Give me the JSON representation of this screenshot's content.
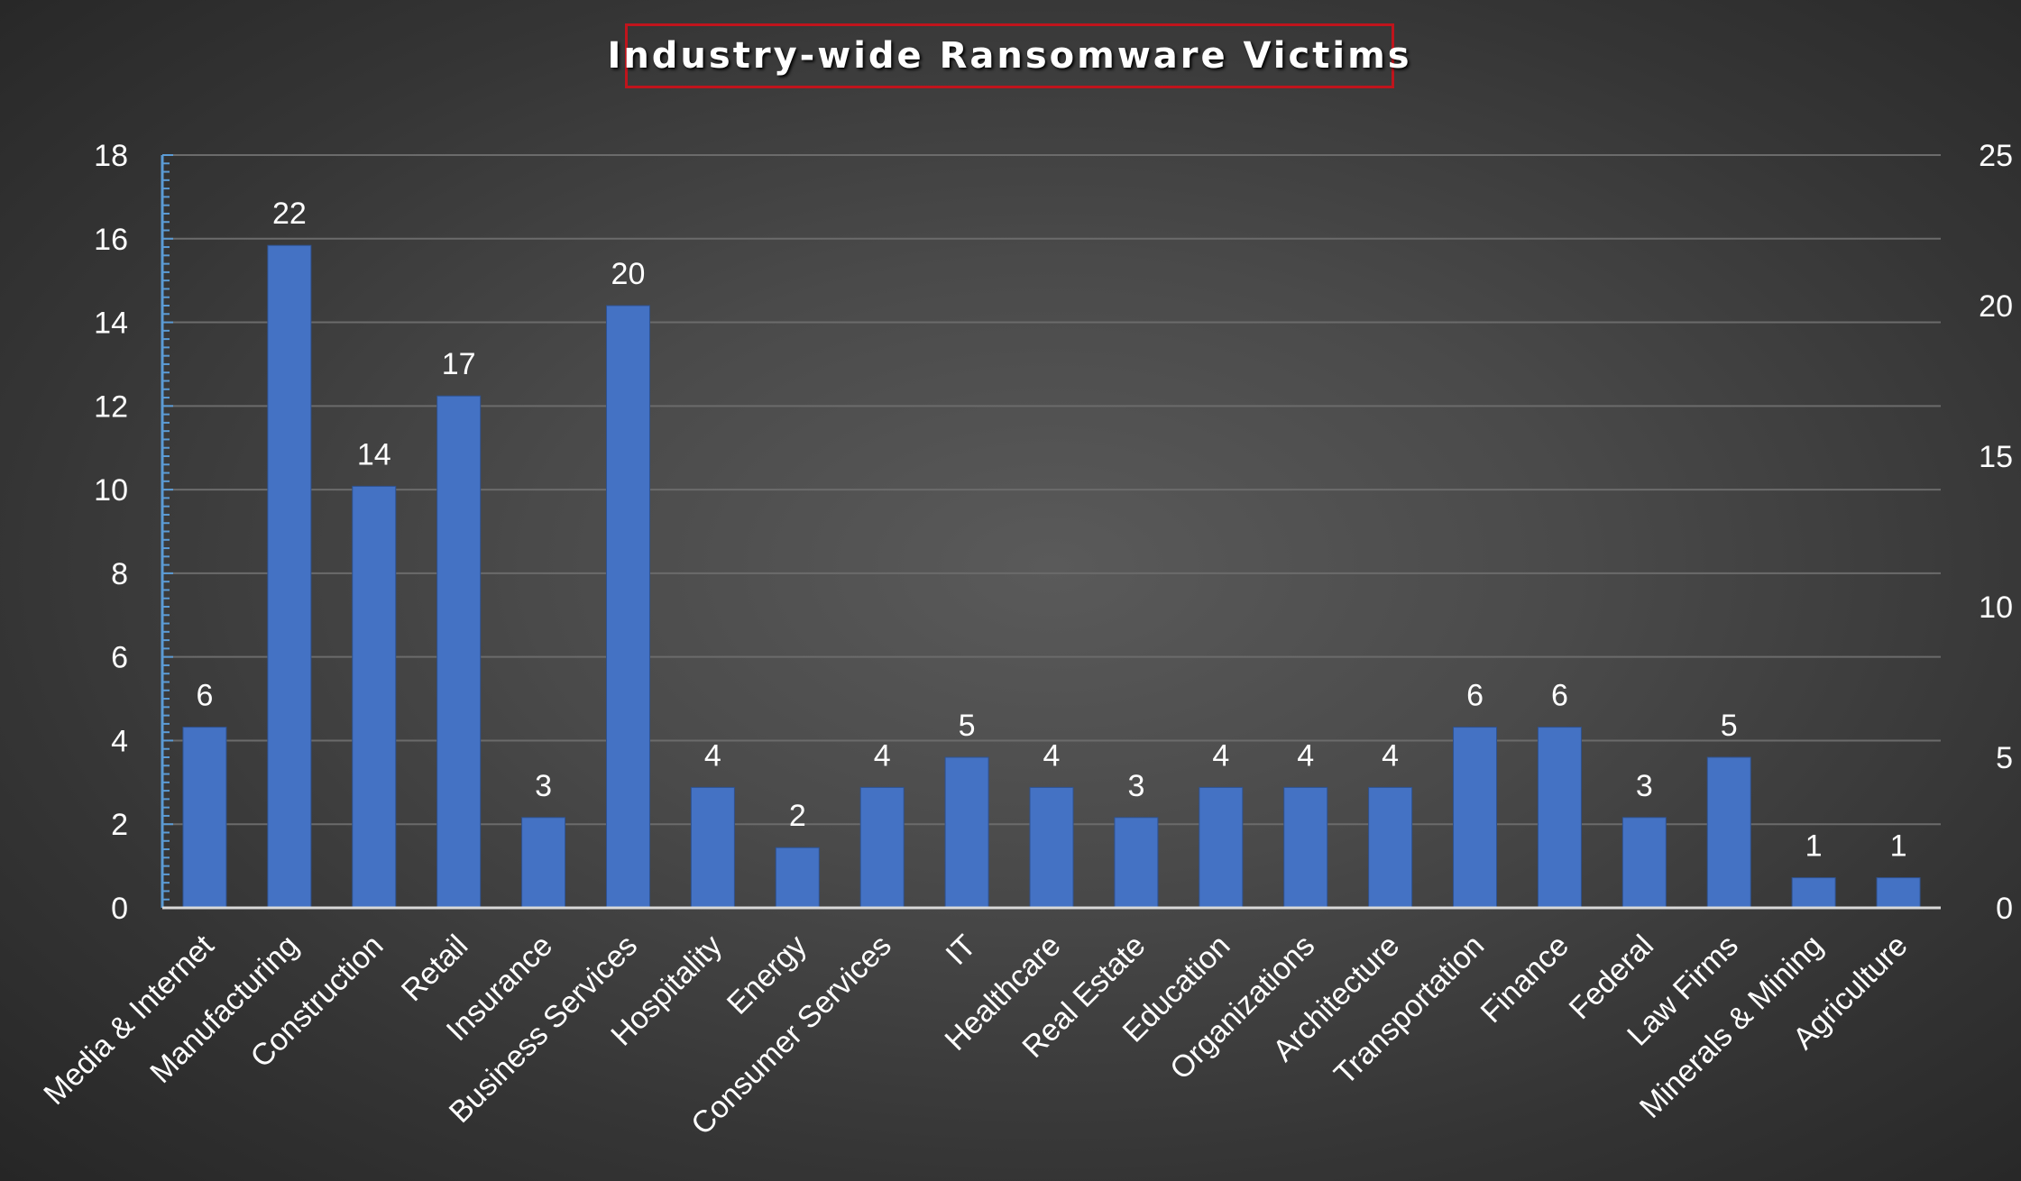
{
  "chart_data": {
    "type": "bar",
    "title": "Industry-wide Ransomware Victims",
    "categories": [
      "Media & Internet",
      "Manufacturing",
      "Construction",
      "Retail",
      "Insurance",
      "Business Services",
      "Hospitality",
      "Energy",
      "Consumer Services",
      "IT",
      "Healthcare",
      "Real Estate",
      "Education",
      "Organizations",
      "Architecture",
      "Transportation",
      "Finance",
      "Federal",
      "Law Firms",
      "Minerals & Mining",
      "Agriculture"
    ],
    "values": [
      6,
      22,
      14,
      17,
      3,
      20,
      4,
      2,
      4,
      5,
      4,
      3,
      4,
      4,
      4,
      6,
      6,
      3,
      5,
      1,
      1
    ],
    "y_left": {
      "ticks": [
        "0",
        "2",
        "4",
        "6",
        "8",
        "10",
        "12",
        "14",
        "16",
        "18"
      ],
      "ylim": [
        0,
        18
      ]
    },
    "y_right": {
      "ticks": [
        "0",
        "5",
        "10",
        "15",
        "20",
        "25"
      ],
      "ylim": [
        0,
        25
      ]
    },
    "bars_plotted_against": "right axis",
    "grid": true,
    "legend": "none",
    "colors": {
      "bar": "#4472c4",
      "text": "#ffffff",
      "grid": "#6b6b6b",
      "left_axis": "#5b9bd5",
      "title_border": "#c0141c"
    }
  }
}
